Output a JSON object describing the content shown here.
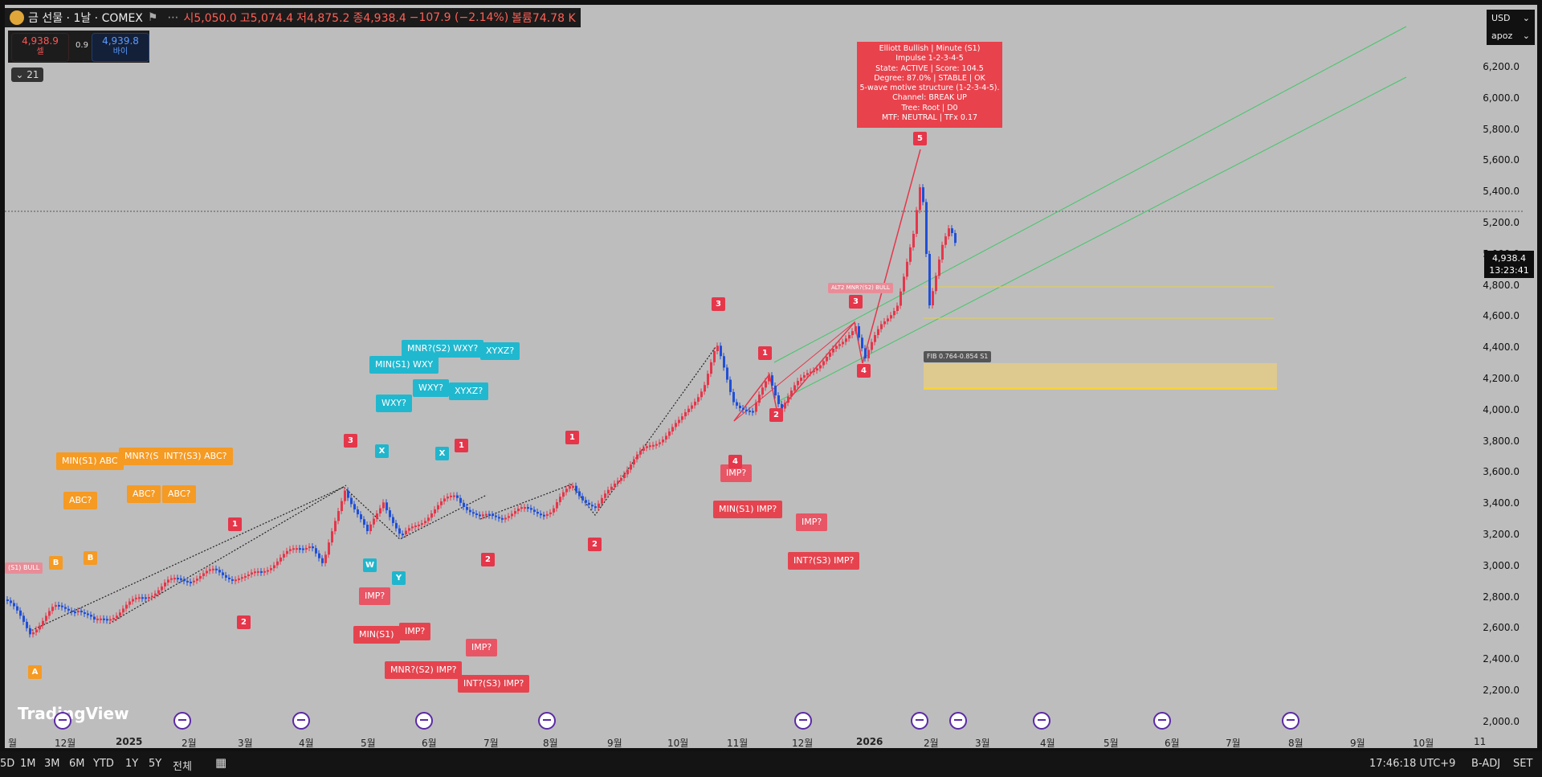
{
  "header": {
    "symbol": "금 선물 · 1날 · COMEX",
    "open": "시5,050.0",
    "high": "고5,074.4",
    "low": "저4,875.2",
    "close": "종4,938.4",
    "change": "−107.9 (−2.14%)",
    "volume": "볼륨74.78 K"
  },
  "trade": {
    "sell_price": "4,938.9",
    "sell_label": "셀",
    "spread": "0.9",
    "buy_price": "4,939.8",
    "buy_label": "바이"
  },
  "collapse_label": "⌄ 21",
  "currency": {
    "value": "USD",
    "user": "apoz"
  },
  "price_axis": [
    "6,200.0",
    "6,000.0",
    "5,800.0",
    "5,600.0",
    "5,400.0",
    "5,200.0",
    "5,000.0",
    "4,800.0",
    "4,600.0",
    "4,400.0",
    "4,200.0",
    "4,000.0",
    "3,800.0",
    "3,600.0",
    "3,400.0",
    "3,200.0",
    "3,000.0",
    "2,800.0",
    "2,600.0",
    "2,400.0",
    "2,200.0",
    "2,000.0"
  ],
  "current_price": {
    "price": "4,938.4",
    "countdown": "13:23:41"
  },
  "time_axis": [
    "월",
    "12월",
    "2025",
    "2월",
    "3월",
    "4월",
    "5월",
    "6월",
    "7월",
    "8월",
    "9월",
    "10월",
    "11월",
    "12월",
    "2026",
    "2월",
    "3월",
    "4월",
    "5월",
    "6월",
    "7월",
    "8월",
    "9월",
    "10월",
    "11"
  ],
  "elliott_box": [
    "Elliott Bullish | Minute (S1)",
    "Impulse 1-2-3-4-5",
    "State: ACTIVE | Score: 104.5",
    "Degree: 87.0% | STABLE | OK",
    "5-wave motive structure (1-2-3-4-5).",
    "Channel: BREAK UP",
    "Tree: Root | D0",
    "MTF: NEUTRAL | TFx 0.17"
  ],
  "labels": {
    "min_s1_abc": "MIN(S1) ABC",
    "mnr_s": "MNR?(S",
    "int_s3_abc": "INT?(S3) ABC?",
    "abc1": "ABC?",
    "abc2": "ABC?",
    "abc3": "ABC?",
    "bull_left": "(S1) BULL",
    "mnr_s2_wxy": "MNR?(S2) WXY?",
    "xyxz": "XYXZ?",
    "min_s1_wxy": "MIN(S1) WXY",
    "wxy1": "WXY?",
    "wxy2": "WXY?",
    "xyxz2": "XYXZ?",
    "imp1": "IMP?",
    "min_s1_imp_left": "MIN(S1)",
    "imp2": "IMP?",
    "imp3": "IMP?",
    "mnr_s2_imp": "MNR?(S2) IMP?",
    "int_s3_imp_left": "INT?(S3) IMP?",
    "imp4": "IMP?",
    "min_s1_imp": "MIN(S1) IMP?",
    "imp5": "IMP?",
    "int_s3_imp": "INT?(S3) IMP?",
    "alt2": "ALT2 MNR?(S2) BULL",
    "fib": "FIB 0.764-0.854 S1"
  },
  "markers": {
    "A": "A",
    "B1": "B",
    "B2": "B",
    "r1": "1",
    "r2": "2",
    "r3": "3",
    "r1b": "1",
    "r2b": "2",
    "c_x1": "X",
    "c_x2": "X",
    "c_w": "W",
    "c_y": "Y",
    "r1c": "1",
    "r2c": "2",
    "r3c": "3",
    "r4c": "4",
    "r1d": "1",
    "r2d": "2",
    "r3d": "3",
    "r4d": "4",
    "r5d": "5"
  },
  "logo_text": "TradingView",
  "bottom": {
    "ranges": [
      "5D",
      "1M",
      "3M",
      "6M",
      "YTD",
      "1Y",
      "5Y",
      "전체"
    ],
    "clock": "17:46:18 UTC+9",
    "badj": "B-ADJ",
    "set": "SET"
  },
  "colors": {
    "up": "#e5364a",
    "down": "#1f4fd8",
    "bg": "#bdbdbd",
    "channel": "#2ecc71",
    "accent_red": "#e8424c"
  }
}
